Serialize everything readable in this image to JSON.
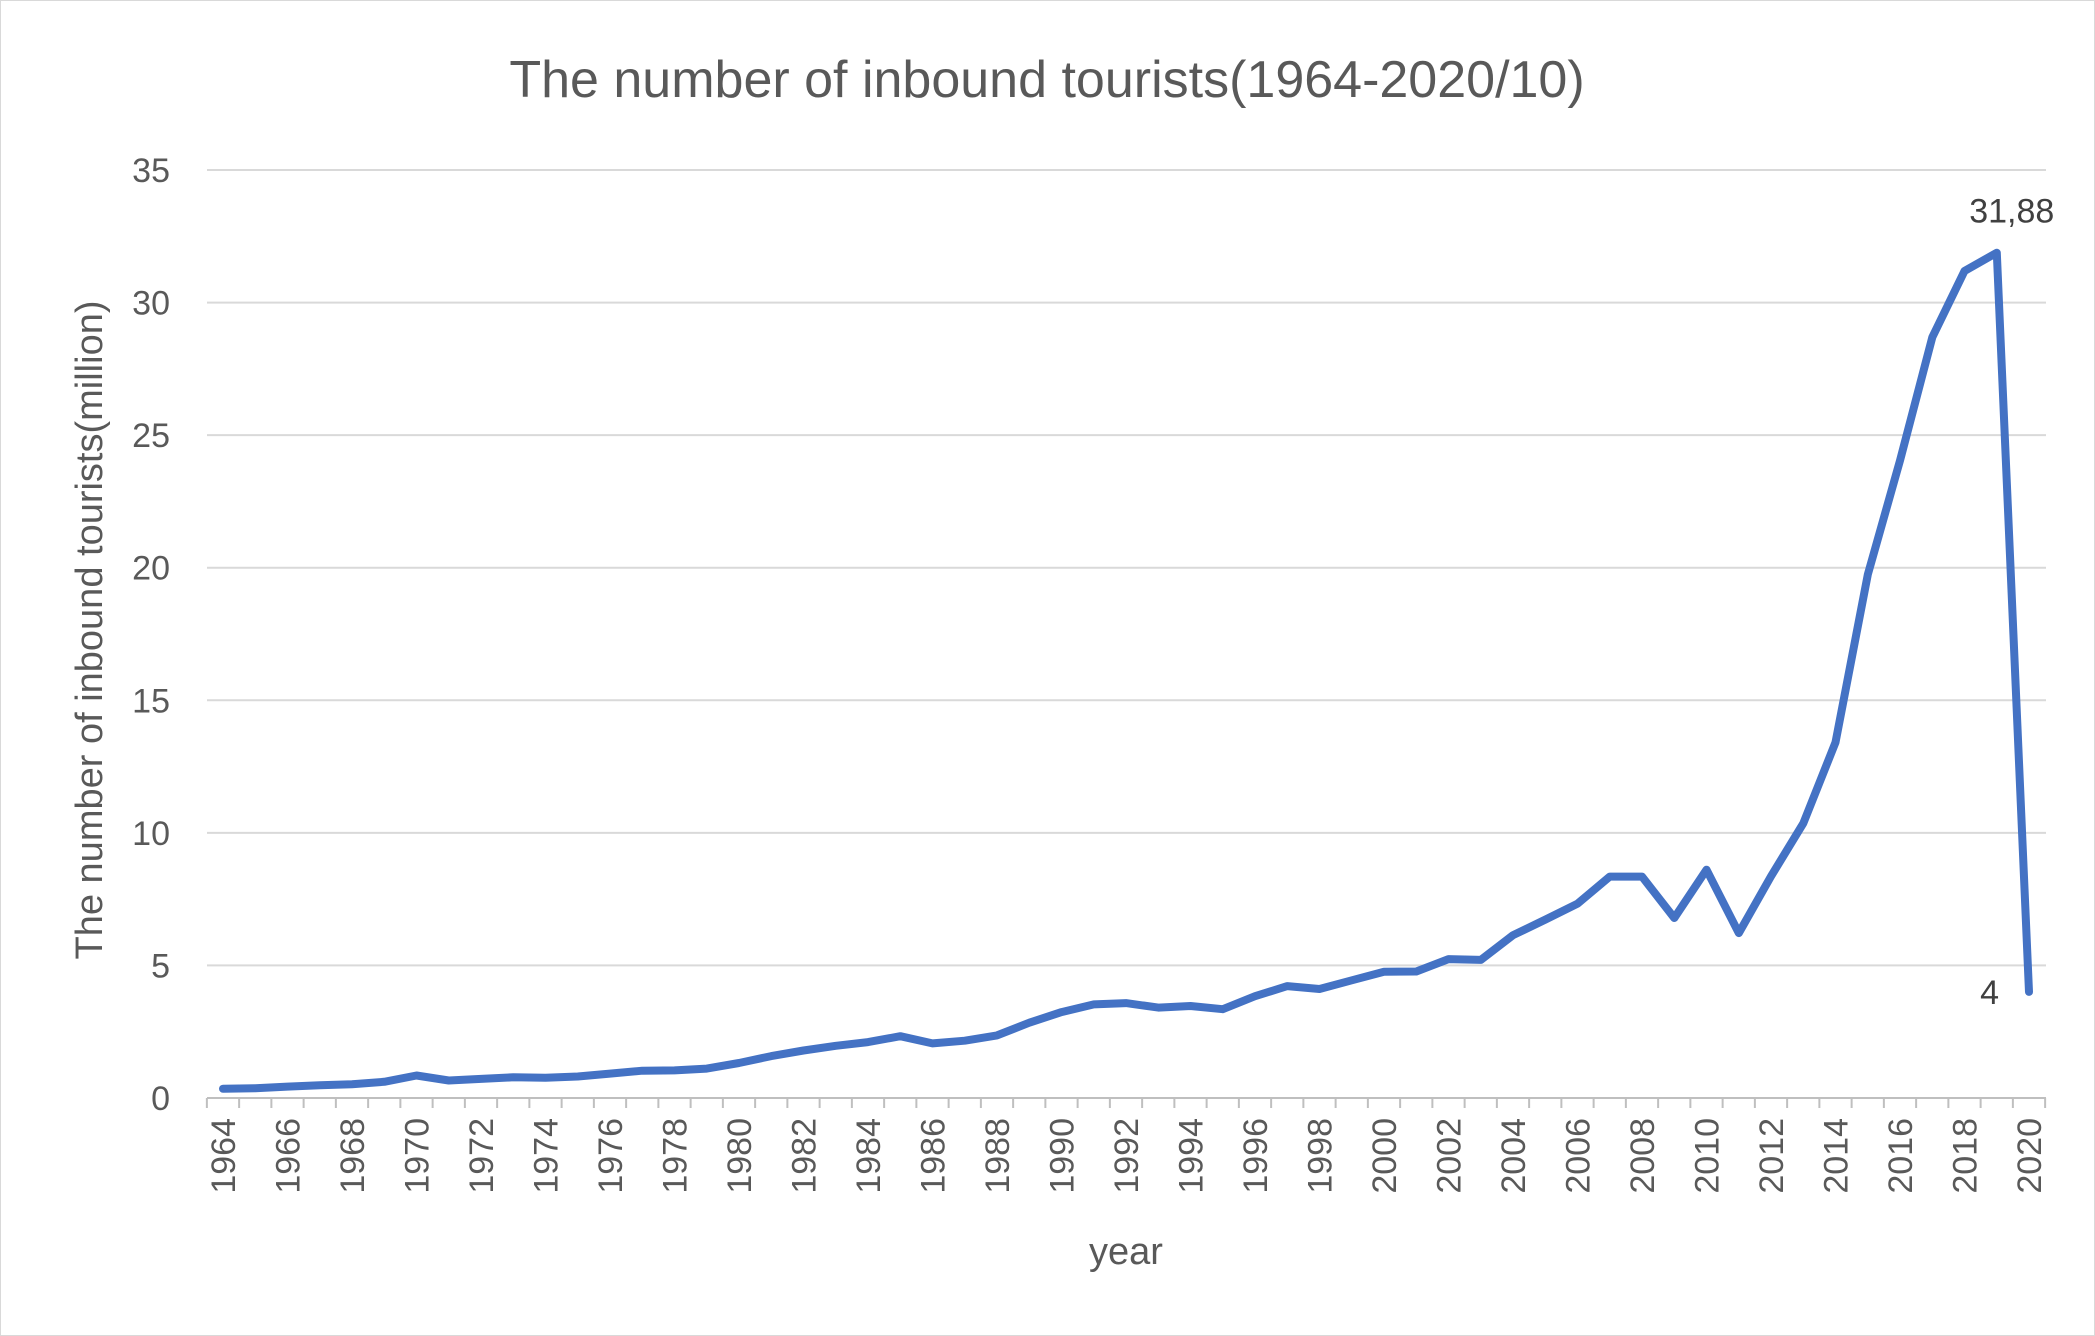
{
  "chart_data": {
    "type": "line",
    "title": "The number of inbound tourists(1964-2020/10)",
    "xlabel": "year",
    "ylabel": "The number of inbound tourists(million)",
    "ylim": [
      0,
      35
    ],
    "yticks": [
      0,
      5,
      10,
      15,
      20,
      25,
      30,
      35
    ],
    "grid": true,
    "legend": "none",
    "x": [
      1964,
      1965,
      1966,
      1967,
      1968,
      1969,
      1970,
      1971,
      1972,
      1973,
      1974,
      1975,
      1976,
      1977,
      1978,
      1979,
      1980,
      1981,
      1982,
      1983,
      1984,
      1985,
      1986,
      1987,
      1988,
      1989,
      1990,
      1991,
      1992,
      1993,
      1994,
      1995,
      1996,
      1997,
      1998,
      1999,
      2000,
      2001,
      2002,
      2003,
      2004,
      2005,
      2006,
      2007,
      2008,
      2009,
      2010,
      2011,
      2012,
      2013,
      2014,
      2015,
      2016,
      2017,
      2018,
      2019,
      2020
    ],
    "xtick_labels": [
      "1964",
      "1966",
      "1968",
      "1970",
      "1972",
      "1974",
      "1976",
      "1978",
      "1980",
      "1982",
      "1984",
      "1986",
      "1988",
      "1990",
      "1992",
      "1994",
      "1996",
      "1998",
      "2000",
      "2002",
      "2004",
      "2006",
      "2008",
      "2010",
      "2012",
      "2014",
      "2016",
      "2018",
      "2020"
    ],
    "series": [
      {
        "color": "#4472c4",
        "values": [
          0.35,
          0.37,
          0.43,
          0.48,
          0.52,
          0.61,
          0.85,
          0.66,
          0.72,
          0.78,
          0.76,
          0.81,
          0.92,
          1.03,
          1.04,
          1.11,
          1.32,
          1.58,
          1.79,
          1.97,
          2.11,
          2.33,
          2.06,
          2.16,
          2.36,
          2.84,
          3.24,
          3.53,
          3.58,
          3.41,
          3.47,
          3.35,
          3.84,
          4.22,
          4.11,
          4.44,
          4.76,
          4.77,
          5.24,
          5.21,
          6.14,
          6.73,
          7.33,
          8.35,
          8.35,
          6.79,
          8.61,
          6.22,
          8.36,
          10.36,
          13.41,
          19.74,
          24.04,
          28.69,
          31.19,
          31.88,
          4.0
        ]
      }
    ],
    "data_labels": [
      {
        "x": 2019,
        "text": "31,88"
      },
      {
        "x": 2020,
        "text": "4"
      }
    ]
  }
}
